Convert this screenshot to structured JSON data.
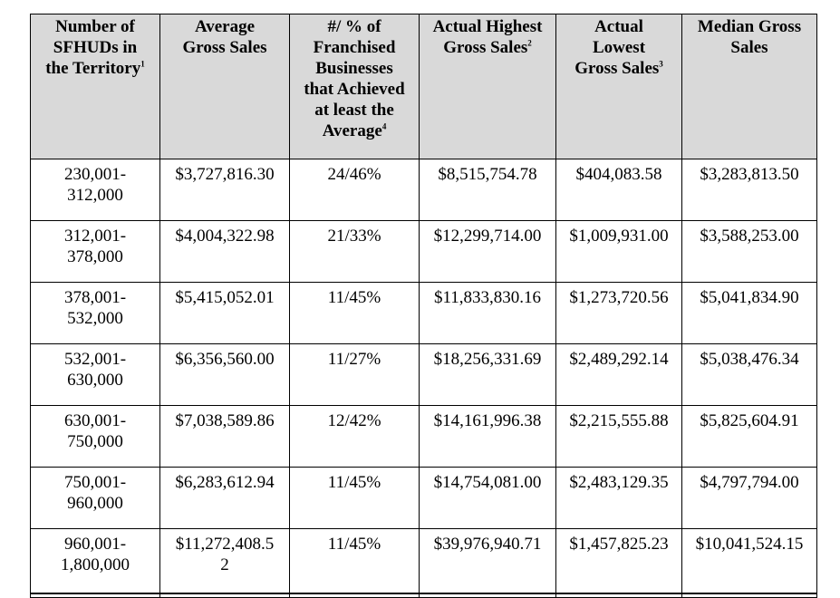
{
  "headers": [
    {
      "lines": [
        "Number of",
        "SFHUDs in",
        "the Territory"
      ],
      "note": "1"
    },
    {
      "lines": [
        "Average",
        "Gross Sales"
      ],
      "note": ""
    },
    {
      "lines": [
        "#/ % of",
        "Franchised",
        "Businesses",
        "that Achieved",
        "at least the",
        "Average"
      ],
      "note": "4"
    },
    {
      "lines": [
        "Actual Highest",
        "Gross Sales"
      ],
      "note": "2"
    },
    {
      "lines": [
        "Actual",
        "Lowest",
        "Gross Sales"
      ],
      "note": "3"
    },
    {
      "lines": [
        "Median Gross",
        "Sales"
      ],
      "note": ""
    }
  ],
  "rows": [
    {
      "range": [
        "230,001-",
        "312,000"
      ],
      "average": "$3,727,816.30",
      "achieved": "24/46%",
      "highest": "$8,515,754.78",
      "lowest": "$404,083.58",
      "median": "$3,283,813.50"
    },
    {
      "range": [
        "312,001-",
        "378,000"
      ],
      "average": "$4,004,322.98",
      "achieved": "21/33%",
      "highest": "$12,299,714.00",
      "lowest": "$1,009,931.00",
      "median": "$3,588,253.00"
    },
    {
      "range": [
        "378,001-",
        "532,000"
      ],
      "average": "$5,415,052.01",
      "achieved": "11/45%",
      "highest": "$11,833,830.16",
      "lowest": "$1,273,720.56",
      "median": "$5,041,834.90"
    },
    {
      "range": [
        "532,001-",
        "630,000"
      ],
      "average": "$6,356,560.00",
      "achieved": "11/27%",
      "highest": "$18,256,331.69",
      "lowest": "$2,489,292.14",
      "median": "$5,038,476.34"
    },
    {
      "range": [
        "630,001-",
        "750,000"
      ],
      "average": "$7,038,589.86",
      "achieved": "12/42%",
      "highest": "$14,161,996.38",
      "lowest": "$2,215,555.88",
      "median": "$5,825,604.91"
    },
    {
      "range": [
        "750,001-",
        "960,000"
      ],
      "average": "$6,283,612.94",
      "achieved": "11/45%",
      "highest": "$14,754,081.00",
      "lowest": "$2,483,129.35",
      "median": "$4,797,794.00"
    },
    {
      "range": [
        "960,001-",
        "1,800,000"
      ],
      "average_lines": [
        "$11,272,408.5",
        "2"
      ],
      "achieved": "11/45%",
      "highest": "$39,976,940.71",
      "lowest": "$1,457,825.23",
      "median": "$10,041,524.15"
    }
  ]
}
